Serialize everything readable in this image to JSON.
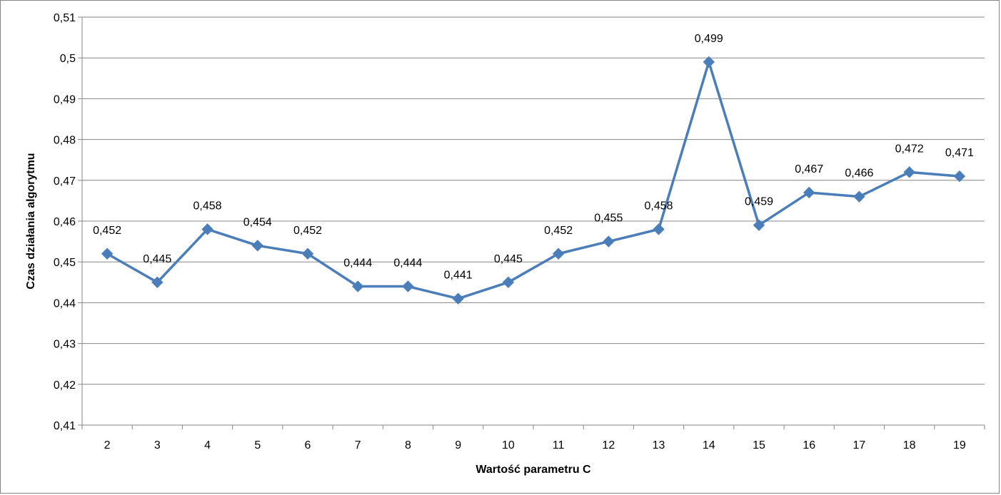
{
  "chart_data": {
    "type": "line",
    "title": "",
    "xlabel": "Wartość parametru C",
    "ylabel": "Czas działania algorytmu",
    "categories": [
      "2",
      "3",
      "4",
      "5",
      "6",
      "7",
      "8",
      "9",
      "10",
      "11",
      "12",
      "13",
      "14",
      "15",
      "16",
      "17",
      "18",
      "19"
    ],
    "series": [
      {
        "values": [
          0.452,
          0.445,
          0.458,
          0.454,
          0.452,
          0.444,
          0.444,
          0.441,
          0.445,
          0.452,
          0.455,
          0.458,
          0.499,
          0.459,
          0.467,
          0.466,
          0.472,
          0.471
        ],
        "labels": [
          "0,452",
          "0,445",
          "0,458",
          "0,454",
          "0,452",
          "0,444",
          "0,444",
          "0,441",
          "0,445",
          "0,452",
          "0,455",
          "0,458",
          "0,499",
          "0,459",
          "0,467",
          "0,466",
          "0,472",
          "0,471"
        ],
        "color": "#4A7EBB",
        "marker": "diamond"
      }
    ],
    "ylim": [
      0.41,
      0.51
    ],
    "yticks": [
      "0,41",
      "0,42",
      "0,43",
      "0,44",
      "0,45",
      "0,46",
      "0,47",
      "0,48",
      "0,49",
      "0,5",
      "0,51"
    ],
    "grid": true,
    "legend": "none",
    "colors": {
      "grid": "#868686",
      "axis": "#868686",
      "line": "#4A7EBB"
    }
  }
}
